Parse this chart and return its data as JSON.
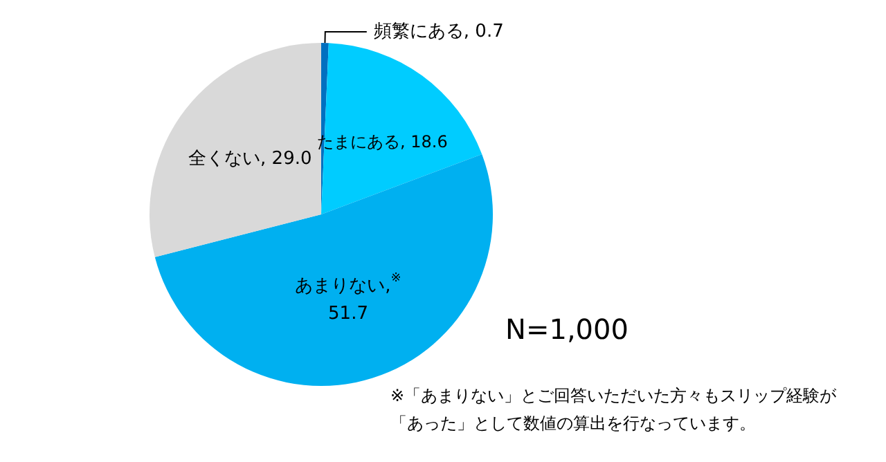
{
  "chart_data": {
    "type": "pie",
    "categories": [
      "頻繁にある",
      "たまにある",
      "あまりない,$^{※}$",
      "全くない"
    ],
    "values": [
      0.7,
      18.6,
      51.7,
      29.0
    ],
    "value_labels": [
      "0.7",
      "18.6",
      "51.7",
      "29.0"
    ],
    "colors": [
      "#0070c0",
      "#00ccff",
      "#00b0f0",
      "#d9d9d9"
    ],
    "annotations": [
      "N=1,000",
      "※「あまりない」とご回答いただいた方々もスリップ経験が",
      "「あった」として数値の算出を行なっています。"
    ]
  }
}
